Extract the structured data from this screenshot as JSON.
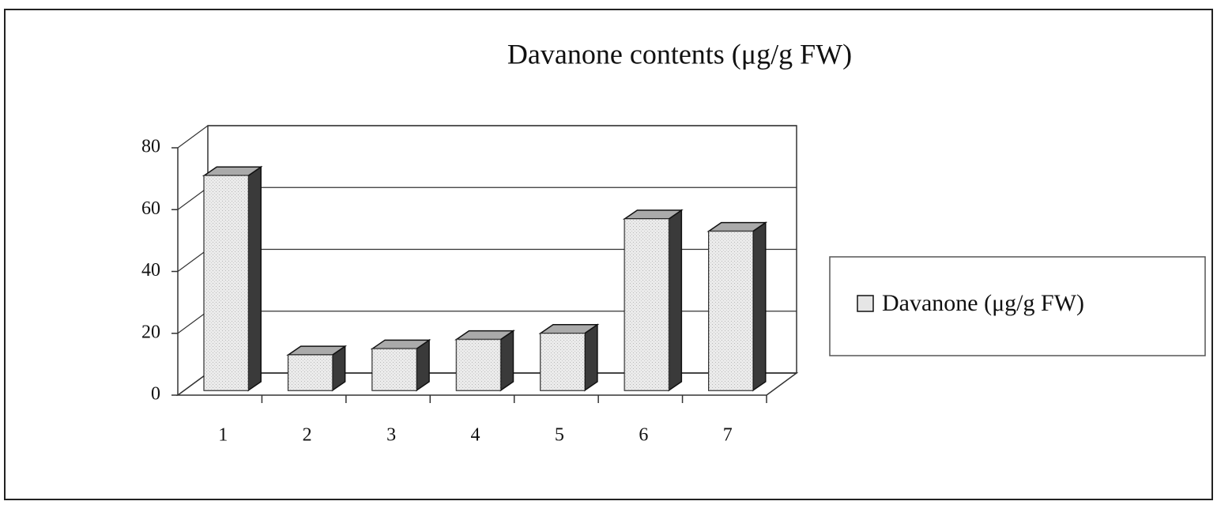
{
  "chart_data": {
    "type": "bar3d",
    "title": "Davanone contents (μg/g FW)",
    "categories": [
      "1",
      "2",
      "3",
      "4",
      "5",
      "6",
      "7"
    ],
    "series": [
      {
        "name": "Davanone (μg/g FW)",
        "color": "#e6e6e6",
        "values": [
          71,
          13,
          15,
          18,
          20,
          57,
          53
        ]
      }
    ],
    "ylim": [
      0,
      80
    ],
    "yticks": [
      0,
      20,
      40,
      60,
      80
    ],
    "grid": true,
    "legend": "right"
  }
}
